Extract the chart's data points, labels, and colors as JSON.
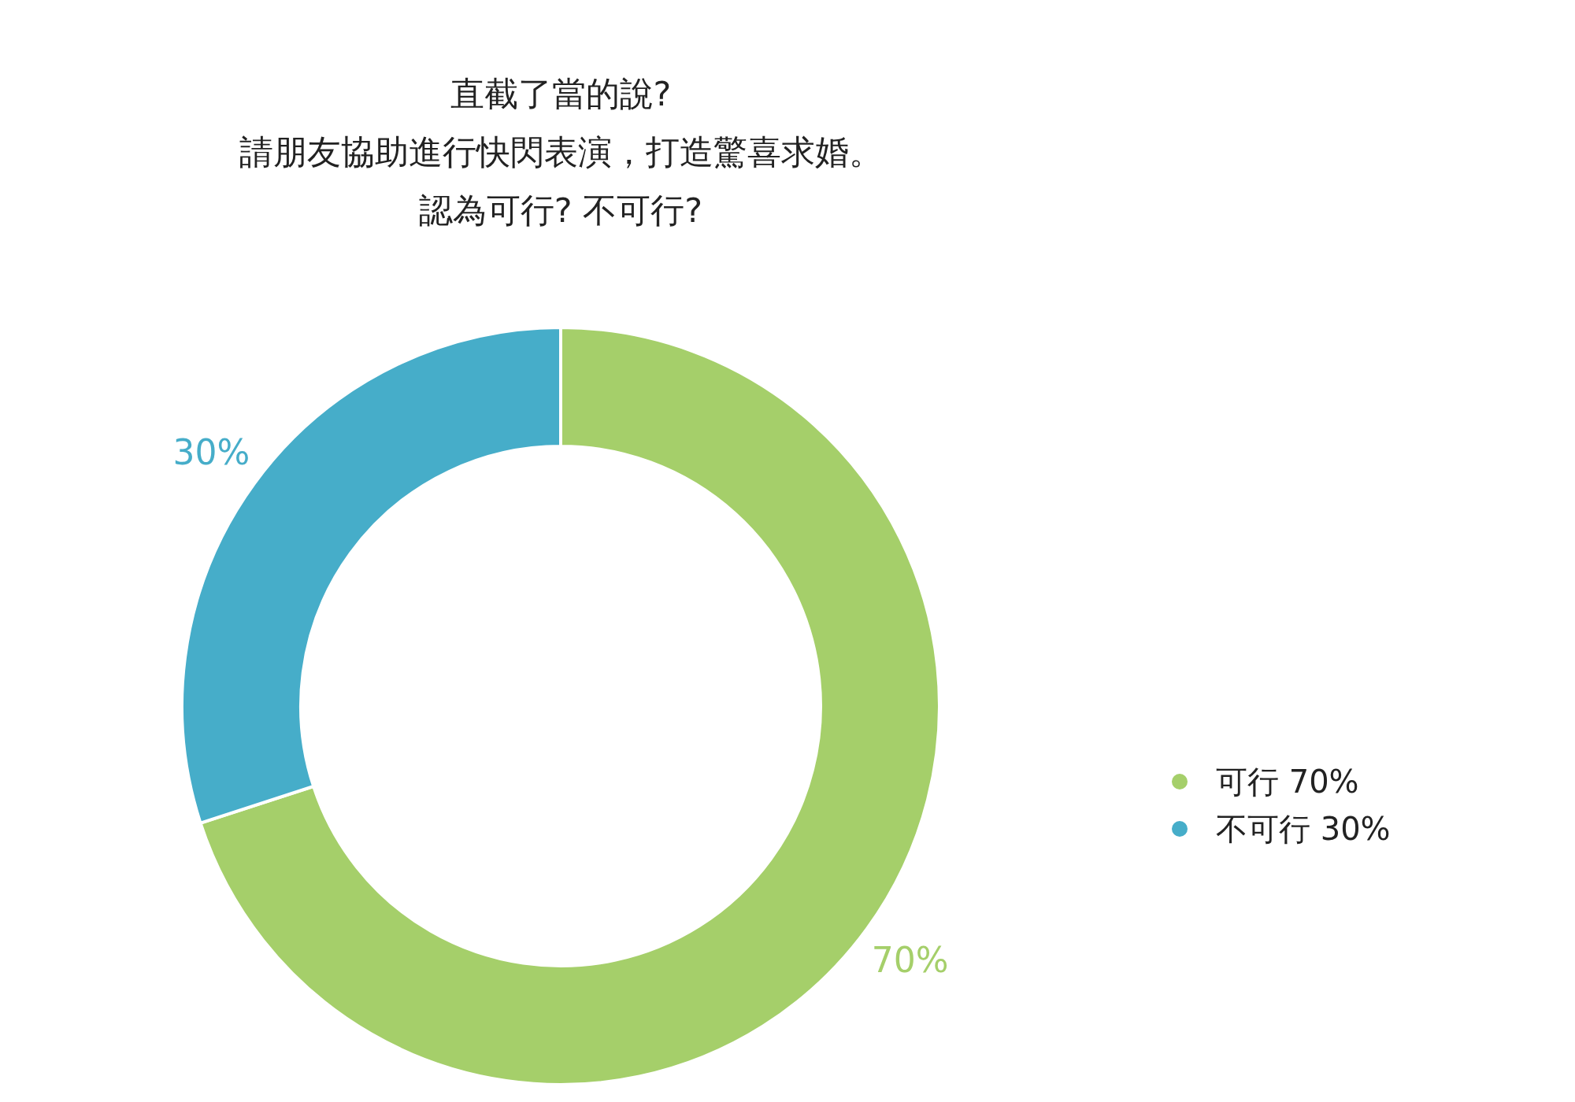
{
  "chart_data": {
    "type": "donut",
    "title": "直截了當的說?請朋友協助進行快閃表演，打造驚喜求婚。認為可行? 不可行?",
    "categories": [
      "可行",
      "不可行"
    ],
    "values": [
      70,
      30
    ],
    "colors": [
      "#a5cf6a",
      "#46adc9"
    ],
    "value_labels": [
      "70%",
      "30%"
    ],
    "legend": "right"
  }
}
